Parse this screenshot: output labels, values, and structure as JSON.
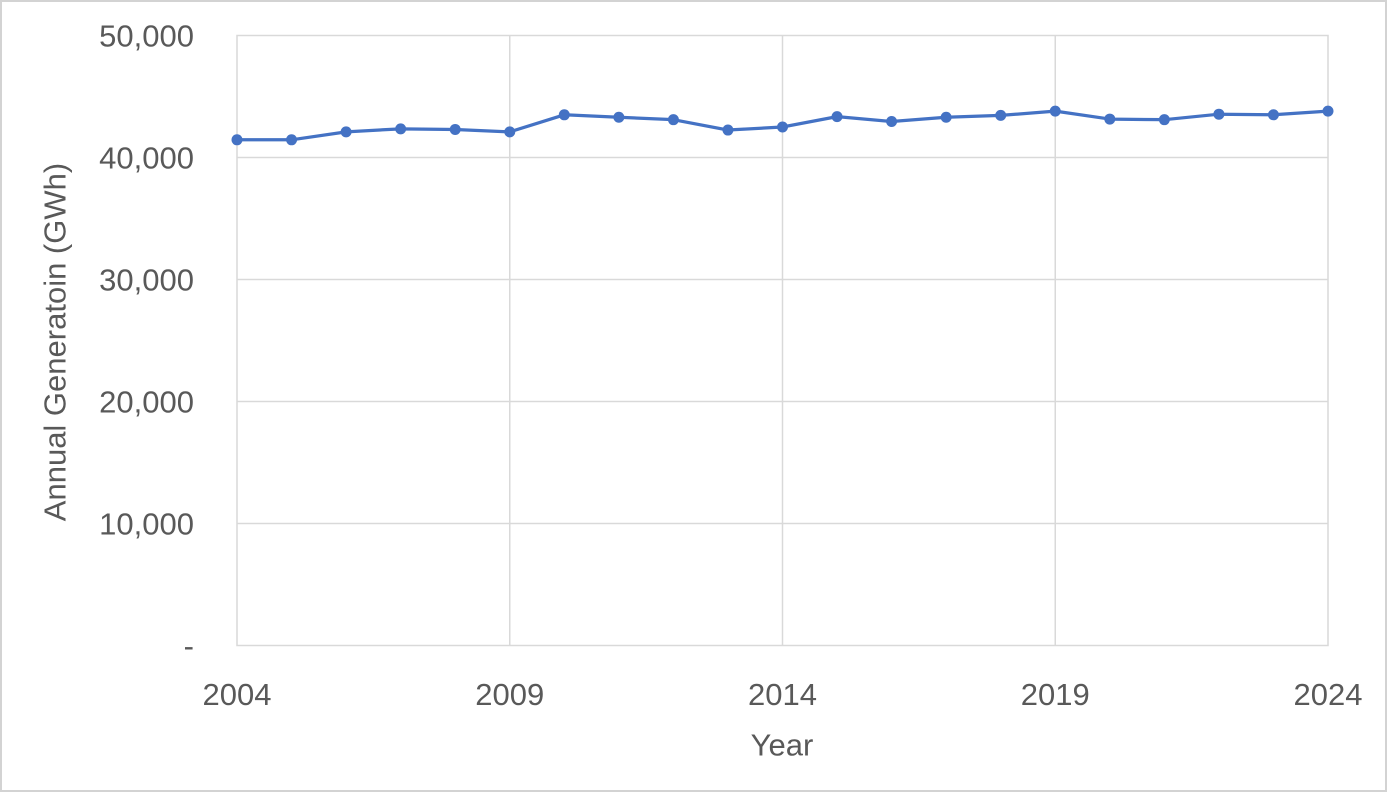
{
  "chart_data": {
    "type": "line",
    "title": "",
    "xlabel": "Year",
    "ylabel": "Annual Generatoin (GWh)",
    "x": [
      2004,
      2005,
      2006,
      2007,
      2008,
      2009,
      2010,
      2011,
      2012,
      2013,
      2014,
      2015,
      2016,
      2017,
      2018,
      2019,
      2020,
      2021,
      2022,
      2023,
      2024
    ],
    "values": [
      41450,
      41450,
      42100,
      42350,
      42300,
      42100,
      43500,
      43300,
      43100,
      42250,
      42500,
      43350,
      42950,
      43300,
      43450,
      43800,
      43150,
      43100,
      43550,
      43500,
      43800
    ],
    "ylim": [
      0,
      50000
    ],
    "yticks": [
      0,
      10000,
      20000,
      30000,
      40000,
      50000
    ],
    "ytick_labels": [
      "-",
      "10,000",
      "20,000",
      "30,000",
      "40,000",
      "50,000"
    ],
    "xticks": [
      2004,
      2009,
      2014,
      2019,
      2024
    ],
    "xtick_labels": [
      "2004",
      "2009",
      "2014",
      "2019",
      "2024"
    ],
    "grid": true,
    "legend": "none",
    "marker": "circle",
    "colors": {
      "series": "#4472C4",
      "gridline": "#D9D9D9",
      "plot_border": "#D9D9D9",
      "axis_text": "#595959"
    }
  }
}
